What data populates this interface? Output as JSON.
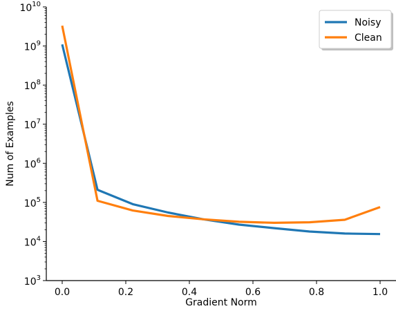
{
  "chart_data": {
    "type": "line",
    "title": "",
    "xlabel": "Gradient Norm",
    "ylabel": "Num of Examples",
    "xlim": [
      -0.05,
      1.05
    ],
    "ylim_log10": [
      3,
      10
    ],
    "yscale": "log",
    "grid": false,
    "legend_position": "top-right",
    "x_ticks": [
      {
        "value": 0.0,
        "label": "0.0"
      },
      {
        "value": 0.2,
        "label": "0.2"
      },
      {
        "value": 0.4,
        "label": "0.4"
      },
      {
        "value": 0.6,
        "label": "0.6"
      },
      {
        "value": 0.8,
        "label": "0.8"
      },
      {
        "value": 1.0,
        "label": "1.0"
      }
    ],
    "y_ticks": [
      {
        "exp": 3,
        "base": "10",
        "sup": "3"
      },
      {
        "exp": 4,
        "base": "10",
        "sup": "4"
      },
      {
        "exp": 5,
        "base": "10",
        "sup": "5"
      },
      {
        "exp": 6,
        "base": "10",
        "sup": "6"
      },
      {
        "exp": 7,
        "base": "10",
        "sup": "7"
      },
      {
        "exp": 8,
        "base": "10",
        "sup": "8"
      },
      {
        "exp": 9,
        "base": "10",
        "sup": "9"
      },
      {
        "exp": 10,
        "base": "10",
        "sup": "10"
      }
    ],
    "x": [
      0.0,
      0.111,
      0.222,
      0.333,
      0.444,
      0.556,
      0.667,
      0.778,
      0.889,
      1.0
    ],
    "series": [
      {
        "name": "Noisy",
        "color": "#1f77b4",
        "values": [
          1100000000,
          210000,
          90000,
          55000,
          37000,
          27000,
          22000,
          18000,
          16000,
          15500
        ]
      },
      {
        "name": "Clean",
        "color": "#ff7f0e",
        "values": [
          3300000000,
          110000,
          62000,
          45000,
          37000,
          32000,
          30000,
          31000,
          36000,
          76000
        ]
      }
    ]
  }
}
